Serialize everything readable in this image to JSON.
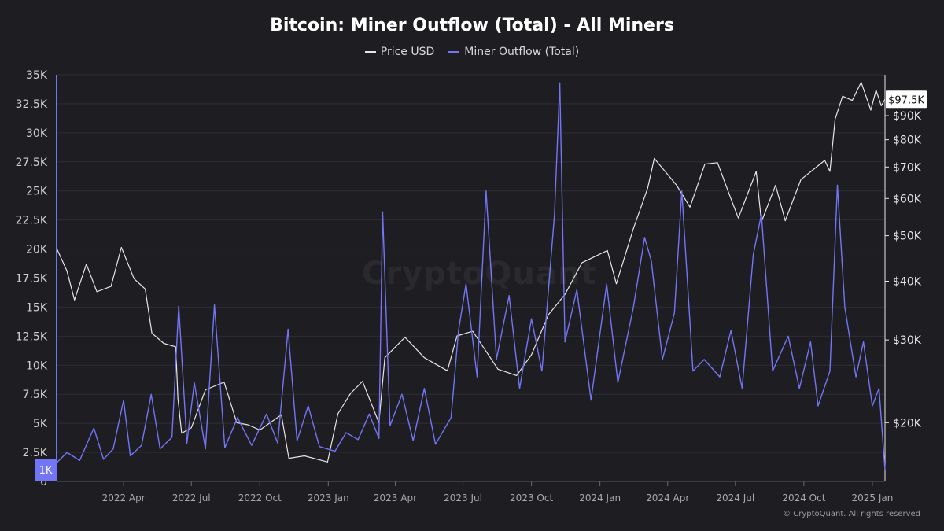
{
  "chart_data": {
    "type": "line",
    "title": "Bitcoin: Miner Outflow (Total) - All Miners",
    "legend_placement": "top-center",
    "grid": true,
    "x_range": [
      "2022-01-01",
      "2025-01-18"
    ],
    "x_ticks": [
      {
        "date": "2022-04-01",
        "label": "2022 Apr"
      },
      {
        "date": "2022-07-01",
        "label": "2022 Jul"
      },
      {
        "date": "2022-10-01",
        "label": "2022 Oct"
      },
      {
        "date": "2023-01-01",
        "label": "2023 Jan"
      },
      {
        "date": "2023-04-01",
        "label": "2023 Apr"
      },
      {
        "date": "2023-07-01",
        "label": "2023 Jul"
      },
      {
        "date": "2023-10-01",
        "label": "2023 Oct"
      },
      {
        "date": "2024-01-01",
        "label": "2024 Jan"
      },
      {
        "date": "2024-04-01",
        "label": "2024 Apr"
      },
      {
        "date": "2024-07-01",
        "label": "2024 Jul"
      },
      {
        "date": "2024-10-01",
        "label": "2024 Oct"
      },
      {
        "date": "2025-01-01",
        "label": "2025 Jan"
      }
    ],
    "y_left": {
      "range": [
        0,
        35000
      ],
      "ticks": [
        0,
        2500,
        5000,
        7500,
        10000,
        12500,
        15000,
        17500,
        20000,
        22500,
        25000,
        27500,
        30000,
        32500,
        35000
      ],
      "tick_labels": [
        "0",
        "2.5K",
        "5K",
        "7.5K",
        "10K",
        "12.5K",
        "15K",
        "17.5K",
        "20K",
        "22.5K",
        "25K",
        "27.5K",
        "30K",
        "32.5K",
        "35K"
      ]
    },
    "y_right": {
      "scale": "log",
      "range": [
        15000,
        110000
      ],
      "ticks": [
        20000,
        30000,
        40000,
        50000,
        60000,
        70000,
        80000,
        90000
      ],
      "tick_labels": [
        "$20K",
        "$30K",
        "$40K",
        "$50K",
        "$60K",
        "$70K",
        "$80K",
        "$90K"
      ]
    },
    "series": [
      {
        "name": "Price USD",
        "color": "#e6e6e6",
        "axis": "right",
        "points": [
          [
            "2022-01-01",
            47000
          ],
          [
            "2022-01-15",
            42000
          ],
          [
            "2022-01-25",
            36500
          ],
          [
            "2022-02-10",
            43500
          ],
          [
            "2022-02-24",
            38000
          ],
          [
            "2022-03-15",
            39000
          ],
          [
            "2022-03-29",
            47200
          ],
          [
            "2022-04-15",
            40500
          ],
          [
            "2022-04-30",
            38500
          ],
          [
            "2022-05-09",
            31000
          ],
          [
            "2022-05-25",
            29500
          ],
          [
            "2022-06-10",
            29000
          ],
          [
            "2022-06-13",
            22500
          ],
          [
            "2022-06-18",
            19000
          ],
          [
            "2022-07-01",
            19500
          ],
          [
            "2022-07-20",
            23500
          ],
          [
            "2022-08-14",
            24400
          ],
          [
            "2022-08-31",
            20000
          ],
          [
            "2022-09-15",
            19800
          ],
          [
            "2022-10-01",
            19300
          ],
          [
            "2022-10-30",
            20800
          ],
          [
            "2022-11-09",
            16800
          ],
          [
            "2022-11-30",
            17000
          ],
          [
            "2022-12-31",
            16500
          ],
          [
            "2023-01-14",
            20900
          ],
          [
            "2023-01-31",
            23100
          ],
          [
            "2023-02-16",
            24500
          ],
          [
            "2023-03-10",
            20000
          ],
          [
            "2023-03-18",
            27500
          ],
          [
            "2023-04-14",
            30400
          ],
          [
            "2023-05-10",
            27500
          ],
          [
            "2023-06-10",
            25800
          ],
          [
            "2023-06-23",
            30600
          ],
          [
            "2023-07-14",
            31300
          ],
          [
            "2023-08-17",
            26000
          ],
          [
            "2023-09-11",
            25200
          ],
          [
            "2023-10-01",
            27900
          ],
          [
            "2023-10-24",
            34000
          ],
          [
            "2023-11-15",
            37500
          ],
          [
            "2023-12-08",
            43800
          ],
          [
            "2024-01-11",
            46500
          ],
          [
            "2024-01-23",
            39500
          ],
          [
            "2024-02-15",
            51800
          ],
          [
            "2024-03-05",
            63000
          ],
          [
            "2024-03-14",
            73000
          ],
          [
            "2024-04-13",
            64000
          ],
          [
            "2024-05-01",
            57500
          ],
          [
            "2024-05-21",
            71000
          ],
          [
            "2024-06-07",
            71500
          ],
          [
            "2024-06-24",
            60500
          ],
          [
            "2024-07-05",
            54500
          ],
          [
            "2024-07-29",
            68500
          ],
          [
            "2024-08-05",
            53500
          ],
          [
            "2024-08-24",
            64000
          ],
          [
            "2024-09-06",
            53800
          ],
          [
            "2024-09-27",
            65800
          ],
          [
            "2024-10-29",
            72300
          ],
          [
            "2024-11-05",
            68500
          ],
          [
            "2024-11-12",
            88500
          ],
          [
            "2024-11-22",
            99000
          ],
          [
            "2024-12-05",
            97000
          ],
          [
            "2024-12-17",
            106000
          ],
          [
            "2024-12-30",
            92500
          ],
          [
            "2025-01-06",
            102000
          ],
          [
            "2025-01-13",
            94500
          ],
          [
            "2025-01-18",
            97500
          ]
        ]
      },
      {
        "name": "Miner Outflow (Total)",
        "color": "#7275f5",
        "axis": "left",
        "points": [
          [
            "2022-01-01",
            1600
          ],
          [
            "2022-01-15",
            2500
          ],
          [
            "2022-02-01",
            1800
          ],
          [
            "2022-02-20",
            4600
          ],
          [
            "2022-03-05",
            1900
          ],
          [
            "2022-03-18",
            2800
          ],
          [
            "2022-04-01",
            7000
          ],
          [
            "2022-04-10",
            2200
          ],
          [
            "2022-04-25",
            3100
          ],
          [
            "2022-05-08",
            7500
          ],
          [
            "2022-05-20",
            2800
          ],
          [
            "2022-06-05",
            3800
          ],
          [
            "2022-06-14",
            15100
          ],
          [
            "2022-06-25",
            3300
          ],
          [
            "2022-07-05",
            8500
          ],
          [
            "2022-07-20",
            2800
          ],
          [
            "2022-08-01",
            15200
          ],
          [
            "2022-08-15",
            2900
          ],
          [
            "2022-09-01",
            5500
          ],
          [
            "2022-09-20",
            3100
          ],
          [
            "2022-10-10",
            5800
          ],
          [
            "2022-10-25",
            3300
          ],
          [
            "2022-11-08",
            13100
          ],
          [
            "2022-11-20",
            3500
          ],
          [
            "2022-12-05",
            6500
          ],
          [
            "2022-12-20",
            3000
          ],
          [
            "2023-01-10",
            2600
          ],
          [
            "2023-01-25",
            4200
          ],
          [
            "2023-02-10",
            3600
          ],
          [
            "2023-02-25",
            5800
          ],
          [
            "2023-03-10",
            3700
          ],
          [
            "2023-03-15",
            23200
          ],
          [
            "2023-03-25",
            4800
          ],
          [
            "2023-04-10",
            7500
          ],
          [
            "2023-04-25",
            3500
          ],
          [
            "2023-05-10",
            8000
          ],
          [
            "2023-05-25",
            3200
          ],
          [
            "2023-06-15",
            5500
          ],
          [
            "2023-06-25",
            13000
          ],
          [
            "2023-07-05",
            17000
          ],
          [
            "2023-07-20",
            9000
          ],
          [
            "2023-08-01",
            25000
          ],
          [
            "2023-08-15",
            10500
          ],
          [
            "2023-09-01",
            16000
          ],
          [
            "2023-09-15",
            8000
          ],
          [
            "2023-10-01",
            14000
          ],
          [
            "2023-10-15",
            9500
          ],
          [
            "2023-11-01",
            23000
          ],
          [
            "2023-11-08",
            34300
          ],
          [
            "2023-11-15",
            12000
          ],
          [
            "2023-12-01",
            16500
          ],
          [
            "2023-12-20",
            7000
          ],
          [
            "2024-01-10",
            17000
          ],
          [
            "2024-01-25",
            8500
          ],
          [
            "2024-02-15",
            15000
          ],
          [
            "2024-03-01",
            21000
          ],
          [
            "2024-03-10",
            19000
          ],
          [
            "2024-03-25",
            10500
          ],
          [
            "2024-04-10",
            14500
          ],
          [
            "2024-04-20",
            25000
          ],
          [
            "2024-05-05",
            9500
          ],
          [
            "2024-05-20",
            10500
          ],
          [
            "2024-06-10",
            9000
          ],
          [
            "2024-06-25",
            13000
          ],
          [
            "2024-07-10",
            8000
          ],
          [
            "2024-07-25",
            19500
          ],
          [
            "2024-08-05",
            23000
          ],
          [
            "2024-08-20",
            9500
          ],
          [
            "2024-09-10",
            12500
          ],
          [
            "2024-09-25",
            8000
          ],
          [
            "2024-10-10",
            12000
          ],
          [
            "2024-10-20",
            6500
          ],
          [
            "2024-11-05",
            9500
          ],
          [
            "2024-11-15",
            25500
          ],
          [
            "2024-11-25",
            15000
          ],
          [
            "2024-12-10",
            9000
          ],
          [
            "2024-12-20",
            12000
          ],
          [
            "2025-01-01",
            6500
          ],
          [
            "2025-01-10",
            8000
          ],
          [
            "2025-01-18",
            1000
          ]
        ]
      }
    ],
    "callouts": [
      {
        "axis": "right",
        "value": 97500,
        "label": "$97.5K"
      },
      {
        "axis": "left",
        "value": 1000,
        "label": "1K"
      }
    ]
  },
  "watermark": "CryptoQuant",
  "copyright": "© CryptoQuant. All rights reserved"
}
